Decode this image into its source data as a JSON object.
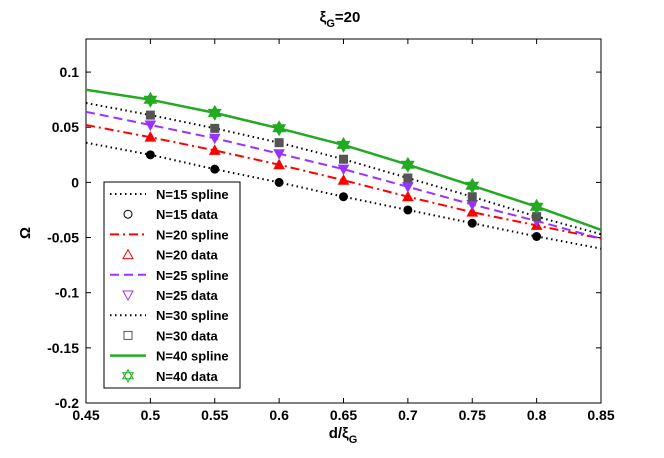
{
  "chart_data": {
    "type": "line",
    "title": "ξ",
    "title_sub": "G",
    "title_rest": "=20",
    "xlabel": "d/ξ",
    "xlabel_sub": "G",
    "ylabel": "Ω",
    "xlim": [
      0.45,
      0.85
    ],
    "ylim": [
      -0.2,
      0.13
    ],
    "xticks": [
      0.45,
      0.5,
      0.55,
      0.6,
      0.65,
      0.7,
      0.75,
      0.8,
      0.85
    ],
    "xtick_labels": [
      "0.45",
      "0.5",
      "0.55",
      "0.6",
      "0.65",
      "0.7",
      "0.75",
      "0.8",
      "0.85"
    ],
    "yticks": [
      -0.2,
      -0.15,
      -0.1,
      -0.05,
      0,
      0.05,
      0.1
    ],
    "ytick_labels": [
      "-0.2",
      "-0.15",
      "-0.1",
      "-0.05",
      "0",
      "0.05",
      "0.1"
    ],
    "grid": false,
    "legend_position": "lower-left",
    "x": [
      0.5,
      0.55,
      0.6,
      0.65,
      0.7,
      0.75,
      0.8
    ],
    "series": [
      {
        "name": "N=15 spline",
        "kind": "line",
        "style": "dotted",
        "color": "#000000",
        "x": [
          0.45,
          0.5,
          0.55,
          0.6,
          0.65,
          0.7,
          0.75,
          0.8,
          0.85
        ],
        "values": [
          0.036,
          0.025,
          0.012,
          0.0,
          -0.013,
          -0.025,
          -0.037,
          -0.049,
          -0.06
        ]
      },
      {
        "name": "N=15 data",
        "kind": "marker",
        "marker": "circle",
        "color": "#000000",
        "x": [
          0.5,
          0.55,
          0.6,
          0.65,
          0.7,
          0.75,
          0.8
        ],
        "values": [
          0.025,
          0.012,
          0.0,
          -0.013,
          -0.025,
          -0.037,
          -0.049
        ]
      },
      {
        "name": "N=20 spline",
        "kind": "line",
        "style": "dashdot",
        "color": "#ff0000",
        "x": [
          0.45,
          0.5,
          0.55,
          0.6,
          0.65,
          0.7,
          0.75,
          0.8,
          0.85
        ],
        "values": [
          0.052,
          0.041,
          0.029,
          0.016,
          0.002,
          -0.013,
          -0.027,
          -0.039,
          -0.051
        ]
      },
      {
        "name": "N=20 data",
        "kind": "marker",
        "marker": "triangle-up",
        "color": "#ff0000",
        "x": [
          0.5,
          0.55,
          0.6,
          0.65,
          0.7,
          0.75,
          0.8
        ],
        "values": [
          0.041,
          0.029,
          0.016,
          0.002,
          -0.013,
          -0.027,
          -0.039
        ]
      },
      {
        "name": "N=25 spline",
        "kind": "line",
        "style": "dashed",
        "color": "#9933ff",
        "x": [
          0.45,
          0.5,
          0.55,
          0.6,
          0.65,
          0.7,
          0.75,
          0.8,
          0.85
        ],
        "values": [
          0.064,
          0.052,
          0.04,
          0.026,
          0.012,
          -0.004,
          -0.02,
          -0.035,
          -0.051
        ]
      },
      {
        "name": "N=25 data",
        "kind": "marker",
        "marker": "triangle-down",
        "color": "#9933ff",
        "x": [
          0.5,
          0.55,
          0.6,
          0.65,
          0.7,
          0.75,
          0.8
        ],
        "values": [
          0.052,
          0.04,
          0.026,
          0.012,
          -0.004,
          -0.02,
          -0.035
        ]
      },
      {
        "name": "N=30 spline",
        "kind": "line",
        "style": "dotted",
        "color": "#000000",
        "x": [
          0.45,
          0.5,
          0.55,
          0.6,
          0.65,
          0.7,
          0.75,
          0.8,
          0.85
        ],
        "values": [
          0.072,
          0.061,
          0.049,
          0.036,
          0.021,
          0.004,
          -0.013,
          -0.031,
          -0.047
        ]
      },
      {
        "name": "N=30 data",
        "kind": "marker",
        "marker": "square",
        "color": "#555555",
        "x": [
          0.5,
          0.55,
          0.6,
          0.65,
          0.7,
          0.75,
          0.8
        ],
        "values": [
          0.061,
          0.049,
          0.036,
          0.021,
          0.004,
          -0.013,
          -0.031
        ]
      },
      {
        "name": "N=40 spline",
        "kind": "line",
        "style": "solid",
        "color": "#22aa22",
        "x": [
          0.45,
          0.5,
          0.55,
          0.6,
          0.65,
          0.7,
          0.75,
          0.8,
          0.85
        ],
        "values": [
          0.084,
          0.075,
          0.063,
          0.049,
          0.034,
          0.016,
          -0.003,
          -0.022,
          -0.043
        ]
      },
      {
        "name": "N=40 data",
        "kind": "marker",
        "marker": "hexagram",
        "color": "#22aa22",
        "x": [
          0.5,
          0.55,
          0.6,
          0.65,
          0.7,
          0.75,
          0.8
        ],
        "values": [
          0.075,
          0.063,
          0.049,
          0.034,
          0.016,
          -0.003,
          -0.022
        ]
      }
    ]
  }
}
